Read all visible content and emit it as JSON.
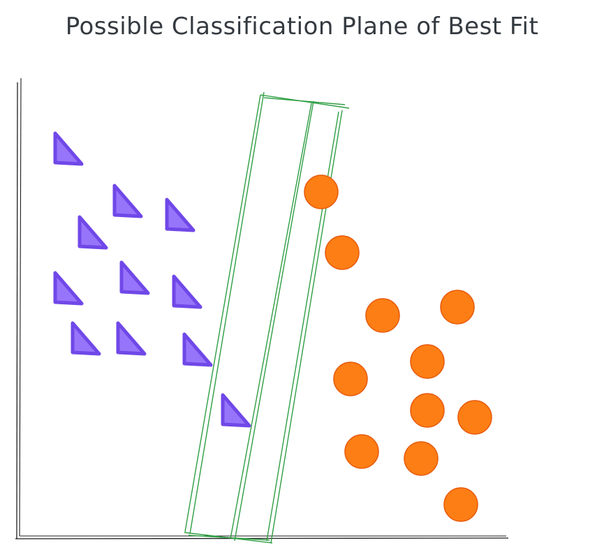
{
  "title": "Possible Classification Plane of Best Fit",
  "colors": {
    "triangle": "#7048e8",
    "triangle_light": "#9775fa",
    "circle": "#fd7e14",
    "circle_stroke": "#e8590c",
    "plane": "#2f9e44",
    "axis": "#1e1e1e",
    "title": "#343a40"
  },
  "chart_data": {
    "type": "scatter",
    "title": "Possible Classification Plane of Best Fit",
    "xlabel": "",
    "ylabel": "",
    "series": [
      {
        "marker": "triangle",
        "x": [
          95,
          180,
          255,
          130,
          95,
          190,
          265,
          120,
          185,
          280,
          335
        ],
        "y": [
          215,
          290,
          310,
          335,
          415,
          400,
          420,
          487,
          487,
          503,
          590
        ]
      },
      {
        "marker": "circle",
        "x": [
          460,
          490,
          548,
          655,
          612,
          502,
          612,
          680,
          518,
          603,
          660
        ],
        "y": [
          275,
          362,
          452,
          440,
          518,
          543,
          588,
          598,
          647,
          657,
          723
        ]
      }
    ]
  }
}
